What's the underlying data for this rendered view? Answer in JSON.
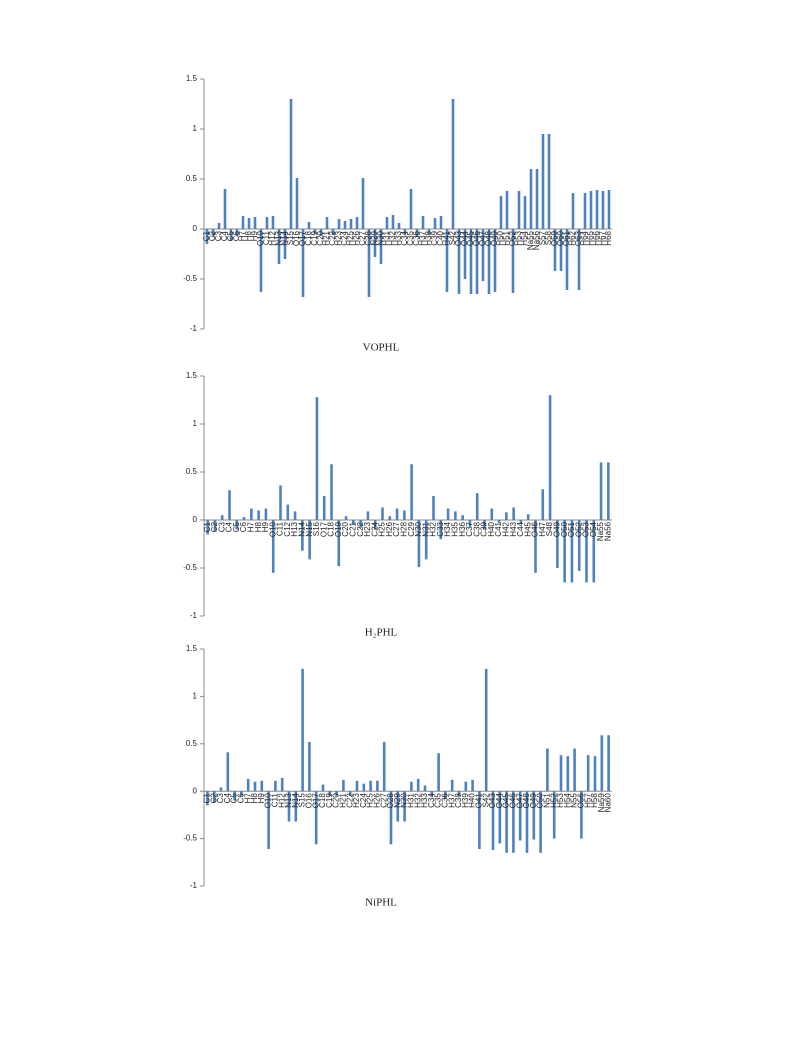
{
  "chart_data": [
    {
      "type": "bar",
      "title": "VOPHL",
      "color": "#4f81bd",
      "ylim": [
        -1,
        1.5
      ],
      "yticks": [
        -1,
        -0.5,
        0,
        0.5,
        1,
        1.5
      ],
      "categories": [
        "C1",
        "C2",
        "C3",
        "C4",
        "C5",
        "C6",
        "H7",
        "H8",
        "H9",
        "O10",
        "C11",
        "H12",
        "N13",
        "N14",
        "S15",
        "O16",
        "O17",
        "C18",
        "C19",
        "C20",
        "H21",
        "C22",
        "H23",
        "C24",
        "H25",
        "H26",
        "C27",
        "C28",
        "N29",
        "N30",
        "H31",
        "H32",
        "H33",
        "C34",
        "C35",
        "C36",
        "H37",
        "H38",
        "C39",
        "C40",
        "H41",
        "S42",
        "O43",
        "O44",
        "O45",
        "O46",
        "O47",
        "O48",
        "O49",
        "H50",
        "H51",
        "O52",
        "H53",
        "H54",
        "Na55",
        "Na56",
        "S57",
        "S58",
        "O59",
        "O60",
        "O61",
        "H62",
        "O63",
        "H64",
        "H65",
        "H66",
        "H67",
        "H68"
      ],
      "values": [
        -0.15,
        -0.08,
        0.06,
        0.4,
        -0.12,
        -0.07,
        0.13,
        0.11,
        0.12,
        -0.63,
        0.12,
        0.13,
        -0.35,
        -0.3,
        1.3,
        0.51,
        -0.68,
        0.07,
        -0.05,
        -0.07,
        0.12,
        -0.06,
        0.1,
        0.08,
        0.1,
        0.12,
        0.51,
        -0.68,
        -0.28,
        -0.35,
        0.12,
        0.14,
        0.06,
        -0.05,
        0.4,
        -0.08,
        0.13,
        -0.05,
        0.11,
        0.13,
        -0.63,
        1.3,
        -0.65,
        -0.5,
        -0.65,
        -0.65,
        -0.52,
        -0.65,
        -0.63,
        0.33,
        0.38,
        -0.64,
        0.38,
        0.33,
        0.6,
        0.6,
        0.95,
        0.95,
        -0.42,
        -0.42,
        -0.61,
        0.36,
        -0.61,
        0.36,
        0.38,
        0.39,
        0.38,
        0.39
      ]
    },
    {
      "type": "bar",
      "title": "H₂PHL",
      "color": "#4f81bd",
      "ylim": [
        -1,
        1.5
      ],
      "yticks": [
        -1,
        -0.5,
        0,
        0.5,
        1,
        1.5
      ],
      "categories": [
        "C1",
        "C2",
        "C3",
        "C4",
        "C5",
        "C6",
        "H7",
        "H8",
        "H9",
        "O10",
        "C11",
        "C12",
        "H13",
        "N14",
        "N15",
        "S16",
        "O17",
        "C18",
        "O19",
        "C20",
        "C21",
        "C22",
        "H23",
        "C24",
        "H25",
        "H26",
        "C27",
        "H28",
        "C29",
        "N30",
        "N31",
        "H32",
        "C33",
        "H34",
        "H35",
        "H36",
        "C37",
        "C38",
        "C39",
        "H40",
        "C41",
        "H42",
        "H43",
        "C44",
        "H45",
        "O46",
        "H47",
        "S48",
        "O49",
        "O50",
        "O51",
        "O52",
        "O53",
        "O54",
        "Na55",
        "Na56"
      ],
      "values": [
        -0.15,
        -0.12,
        0.05,
        0.31,
        -0.1,
        0.03,
        0.12,
        0.1,
        0.12,
        -0.55,
        0.36,
        0.16,
        0.09,
        -0.32,
        -0.41,
        1.28,
        0.25,
        0.58,
        -0.48,
        0.04,
        -0.05,
        -0.08,
        0.09,
        -0.1,
        0.13,
        0.04,
        0.12,
        0.1,
        0.58,
        -0.49,
        -0.41,
        0.25,
        -0.2,
        0.12,
        0.09,
        0.05,
        -0.07,
        0.28,
        -0.1,
        0.12,
        -0.03,
        0.08,
        0.13,
        -0.04,
        0.06,
        -0.55,
        0.32,
        1.3,
        -0.5,
        -0.65,
        -0.65,
        -0.53,
        -0.65,
        -0.65,
        0.6,
        0.6
      ]
    },
    {
      "type": "bar",
      "title": "NiPHL",
      "color": "#4f81bd",
      "ylim": [
        -1,
        1.5
      ],
      "yticks": [
        -1,
        -0.5,
        0,
        0.5,
        1,
        1.5
      ],
      "categories": [
        "C1",
        "C2",
        "C3",
        "C4",
        "C5",
        "C6",
        "H7",
        "H8",
        "H9",
        "O10",
        "C11",
        "H12",
        "N13",
        "N14",
        "S15",
        "O16",
        "O17",
        "C18",
        "C19",
        "C20",
        "H21",
        "C22",
        "H23",
        "C24",
        "H25",
        "H26",
        "C27",
        "O28",
        "N29",
        "N30",
        "H31",
        "H32",
        "H33",
        "C34",
        "C35",
        "C36",
        "H37",
        "C38",
        "H39",
        "H40",
        "O41",
        "S42",
        "O43",
        "O44",
        "O45",
        "O46",
        "O47",
        "O48",
        "O49",
        "O50",
        "N51",
        "H52",
        "H53",
        "H54",
        "N55",
        "O56",
        "H57",
        "H58",
        "Na59",
        "Na60"
      ],
      "values": [
        -0.15,
        -0.12,
        0.04,
        0.41,
        -0.1,
        -0.05,
        0.13,
        0.1,
        0.11,
        -0.61,
        0.11,
        0.14,
        -0.32,
        -0.32,
        1.29,
        0.52,
        -0.56,
        0.07,
        -0.05,
        -0.05,
        0.12,
        -0.05,
        0.11,
        0.08,
        0.11,
        0.11,
        0.52,
        -0.56,
        -0.32,
        -0.32,
        0.1,
        0.13,
        0.06,
        -0.05,
        0.4,
        -0.08,
        0.12,
        -0.05,
        0.1,
        0.12,
        -0.61,
        1.29,
        -0.62,
        -0.55,
        -0.65,
        -0.65,
        -0.52,
        -0.65,
        -0.51,
        -0.65,
        0.45,
        -0.5,
        0.38,
        0.37,
        0.45,
        -0.5,
        0.38,
        0.37,
        0.59,
        0.59
      ]
    }
  ]
}
